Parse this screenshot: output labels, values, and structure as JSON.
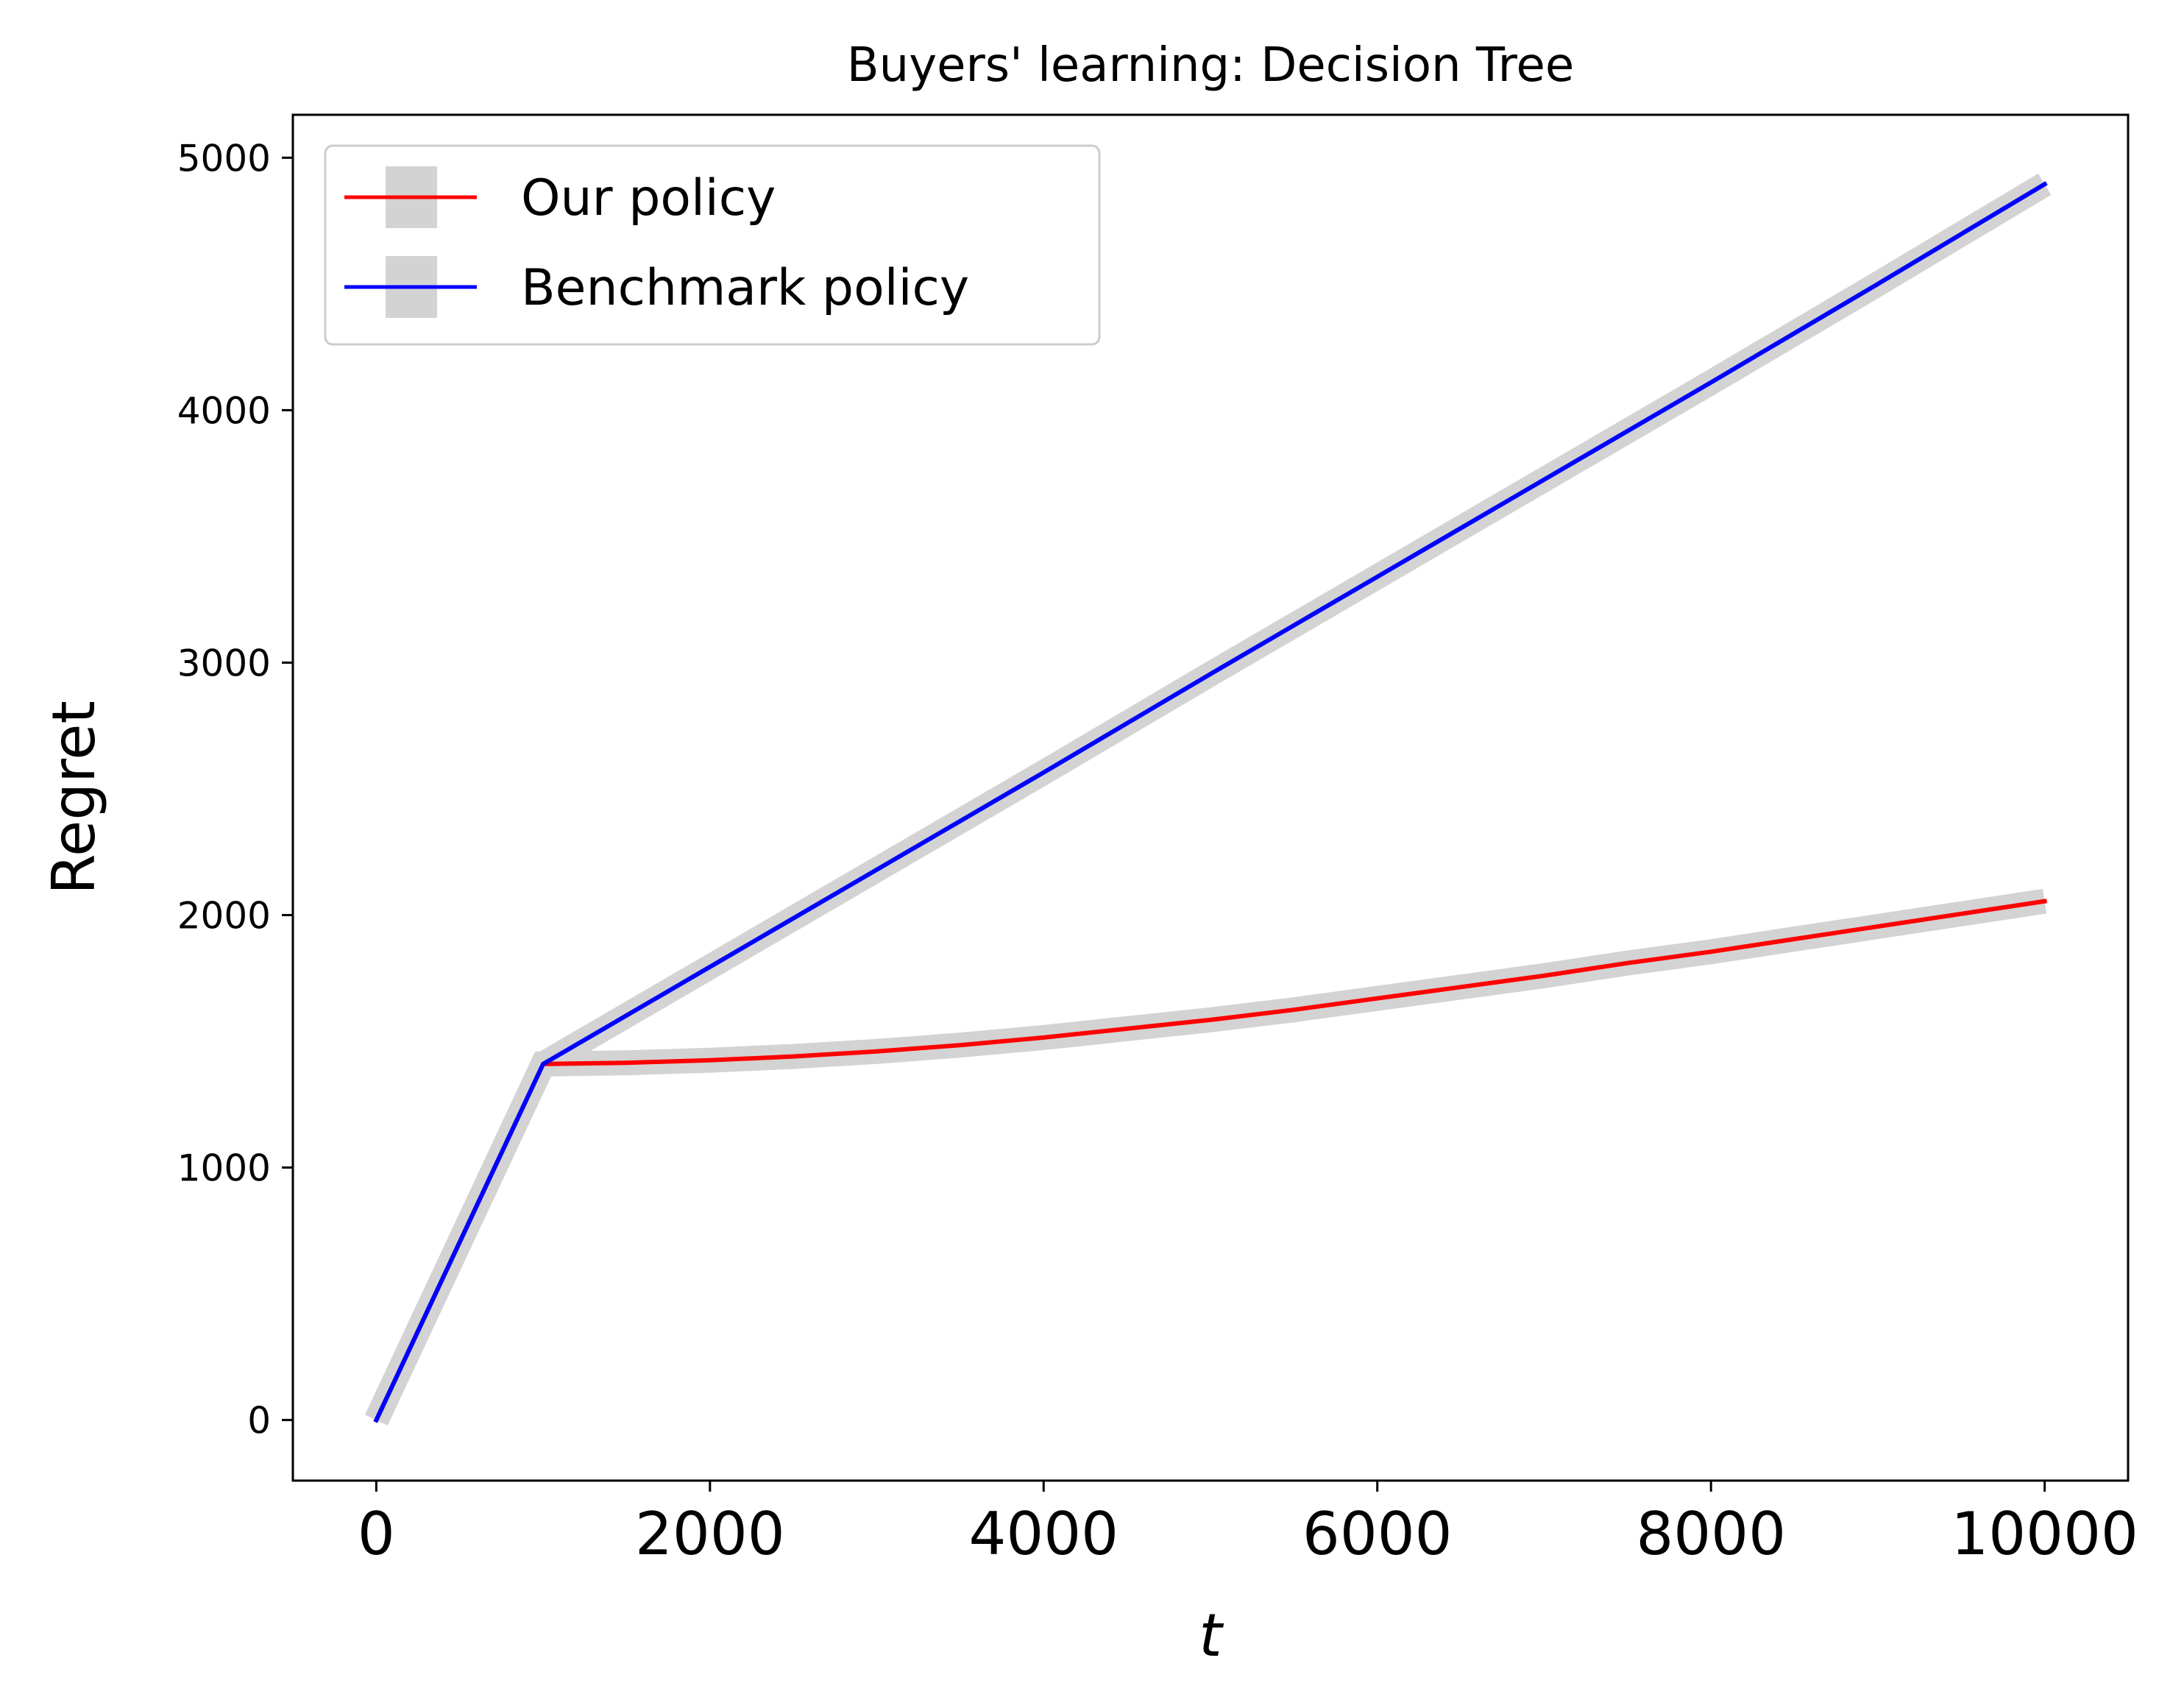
{
  "chart_data": {
    "type": "line",
    "title": "Buyers' learning: Decision Tree",
    "xlabel": "t",
    "ylabel": "Regret",
    "xlim": [
      -500,
      10500
    ],
    "ylim": [
      -240,
      5170
    ],
    "xticks": [
      0,
      2000,
      4000,
      6000,
      8000,
      10000
    ],
    "xtick_labels": [
      "0",
      "2000",
      "4000",
      "6000",
      "8000",
      "10000"
    ],
    "yticks": [
      0,
      1000,
      2000,
      3000,
      4000,
      5000
    ],
    "ytick_labels": [
      "0",
      "1000",
      "2000",
      "3000",
      "4000",
      "5000"
    ],
    "grid": false,
    "legend_position": "upper left",
    "band_color": "#d3d3d3",
    "series": [
      {
        "name": "Our policy",
        "color": "#ff0000",
        "x": [
          0,
          1000,
          1500,
          2000,
          2500,
          3000,
          3500,
          4000,
          4500,
          5000,
          5500,
          6000,
          6500,
          7000,
          7500,
          8000,
          8500,
          9000,
          9500,
          10000
        ],
        "y": [
          0,
          1410,
          1415,
          1425,
          1440,
          1460,
          1485,
          1515,
          1550,
          1585,
          1625,
          1670,
          1715,
          1760,
          1810,
          1855,
          1905,
          1955,
          2005,
          2055
        ]
      },
      {
        "name": "Benchmark policy",
        "color": "#0000ff",
        "x": [
          0,
          1000,
          2000,
          3000,
          4000,
          5000,
          6000,
          7000,
          8000,
          9000,
          10000
        ],
        "y": [
          0,
          1410,
          1795,
          2180,
          2565,
          2955,
          3340,
          3725,
          4110,
          4500,
          4895
        ]
      }
    ]
  }
}
